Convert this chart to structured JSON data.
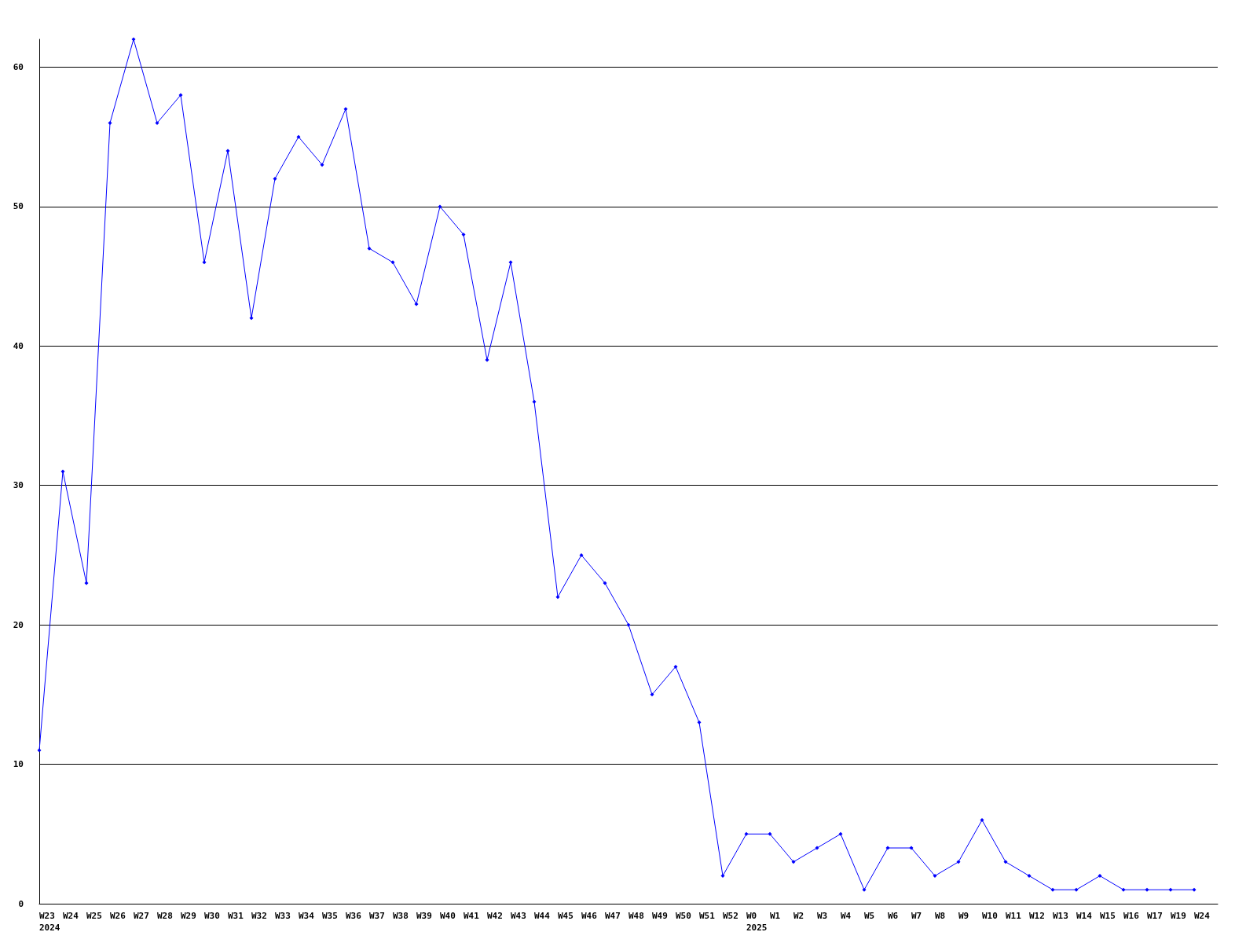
{
  "chart_data": {
    "type": "line",
    "categories": [
      "W23\n2024",
      "W24",
      "W25",
      "W26",
      "W27",
      "W28",
      "W29",
      "W30",
      "W31",
      "W32",
      "W33",
      "W34",
      "W35",
      "W36",
      "W37",
      "W38",
      "W39",
      "W40",
      "W41",
      "W42",
      "W43",
      "W44",
      "W45",
      "W46",
      "W47",
      "W48",
      "W49",
      "W50",
      "W51",
      "W52",
      "W0\n2025",
      "W1",
      "W2",
      "W3",
      "W4",
      "W5",
      "W6",
      "W7",
      "W8",
      "W9",
      "W10",
      "W11",
      "W12",
      "W13",
      "W14",
      "W15",
      "W16",
      "W17",
      "W19",
      "W24",
      null
    ],
    "series": [
      {
        "color": "#0000ff",
        "values": [
          11,
          31,
          23,
          56,
          62,
          56,
          58,
          46,
          54,
          42,
          52,
          55,
          53,
          57,
          47,
          46,
          43,
          50,
          48,
          39,
          46,
          36,
          22,
          25,
          23,
          20,
          15,
          17,
          13,
          2,
          5,
          5,
          3,
          4,
          5,
          1,
          4,
          4,
          2,
          3,
          6,
          3,
          2,
          1,
          1,
          2,
          1,
          1,
          1,
          1,
          null
        ]
      }
    ],
    "ylim": [
      0,
      62
    ],
    "yticks": [
      0,
      10,
      20,
      30,
      40,
      50,
      60
    ],
    "grid": "y",
    "marker": "diamond",
    "line_style": "solid"
  }
}
